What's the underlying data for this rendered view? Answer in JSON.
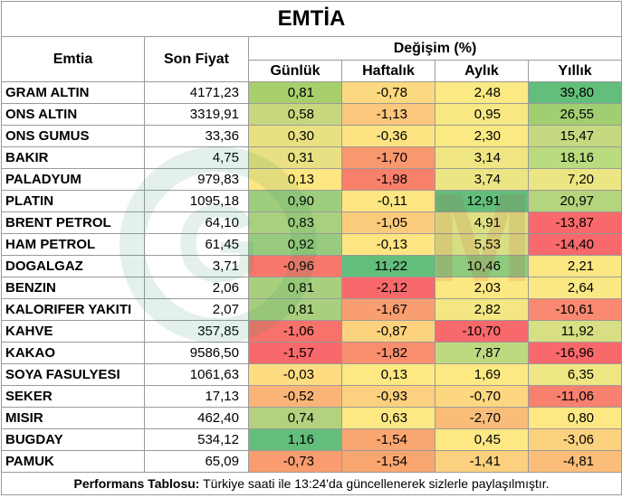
{
  "title": "EMTİA",
  "headers": {
    "commodity": "Emtia",
    "last_price": "Son Fiyat",
    "change_group": "Değişim (%)",
    "daily": "Günlük",
    "weekly": "Haftalık",
    "monthly": "Aylık",
    "yearly": "Yıllık"
  },
  "rows": [
    {
      "name": "GRAM ALTIN",
      "price": "4171,23",
      "daily": "0,81",
      "weekly": "-0,78",
      "monthly": "2,48",
      "yearly": "39,80",
      "colors": [
        "#a8cf6c",
        "#fbd981",
        "#fbe984",
        "#63be7b"
      ]
    },
    {
      "name": "ONS ALTIN",
      "price": "3319,91",
      "daily": "0,58",
      "weekly": "-1,13",
      "monthly": "0,95",
      "yearly": "26,55",
      "colors": [
        "#c7d77e",
        "#fbc77c",
        "#f7e884",
        "#a2ce72"
      ]
    },
    {
      "name": "ONS GUMUS",
      "price": "33,36",
      "daily": "0,30",
      "weekly": "-0,36",
      "monthly": "2,30",
      "yearly": "15,47",
      "colors": [
        "#e9e082",
        "#fde382",
        "#fbe983",
        "#c6d880"
      ]
    },
    {
      "name": "BAKIR",
      "price": "4,75",
      "daily": "0,31",
      "weekly": "-1,70",
      "monthly": "3,14",
      "yearly": "18,16",
      "colors": [
        "#e8e082",
        "#f8986e",
        "#efe583",
        "#badb7e"
      ]
    },
    {
      "name": "PALADYUM",
      "price": "979,83",
      "daily": "0,13",
      "weekly": "-1,98",
      "monthly": "3,74",
      "yearly": "7,20",
      "colors": [
        "#fee782",
        "#f8806b",
        "#ece583",
        "#ebe583"
      ]
    },
    {
      "name": "PLATIN",
      "price": "1095,18",
      "daily": "0,90",
      "weekly": "-0,11",
      "monthly": "12,91",
      "yearly": "20,97",
      "colors": [
        "#9fcd7e",
        "#fee683",
        "#63be7b",
        "#b4d47d"
      ]
    },
    {
      "name": "BRENT PETROL",
      "price": "64,10",
      "daily": "0,83",
      "weekly": "-1,05",
      "monthly": "4,91",
      "yearly": "-13,87",
      "colors": [
        "#a8d07e",
        "#fbcb7c",
        "#dde183",
        "#f8696b"
      ]
    },
    {
      "name": "HAM PETROL",
      "price": "61,45",
      "daily": "0,92",
      "weekly": "-0,13",
      "monthly": "5,53",
      "yearly": "-14,40",
      "colors": [
        "#99cb7e",
        "#fee582",
        "#d7df83",
        "#f8696b"
      ]
    },
    {
      "name": "DOGALGAZ",
      "price": "3,71",
      "daily": "-0,96",
      "weekly": "11,22",
      "monthly": "10,46",
      "yearly": "2,21",
      "colors": [
        "#f8776d",
        "#63be7b",
        "#8ecb7e",
        "#fce883"
      ]
    },
    {
      "name": "BENZIN",
      "price": "2,06",
      "daily": "0,81",
      "weekly": "-2,12",
      "monthly": "2,03",
      "yearly": "2,64",
      "colors": [
        "#a8cf7e",
        "#f8696b",
        "#fbe883",
        "#f9e883"
      ]
    },
    {
      "name": "KALORIFER YAKITI",
      "price": "2,07",
      "daily": "0,81",
      "weekly": "-1,67",
      "monthly": "2,82",
      "yearly": "-10,61",
      "colors": [
        "#a8cf7e",
        "#f99e70",
        "#f3e683",
        "#f98970"
      ]
    },
    {
      "name": "KAHVE",
      "price": "357,85",
      "daily": "-1,06",
      "weekly": "-0,87",
      "monthly": "-10,70",
      "yearly": "11,92",
      "colors": [
        "#f8726c",
        "#fcd27e",
        "#f8696b",
        "#d7de83"
      ]
    },
    {
      "name": "KAKAO",
      "price": "9586,50",
      "daily": "-1,57",
      "weekly": "-1,82",
      "monthly": "7,87",
      "yearly": "-16,96",
      "colors": [
        "#f8696b",
        "#f98e6e",
        "#bfd981",
        "#f8696b"
      ]
    },
    {
      "name": "SOYA FASULYESI",
      "price": "1061,63",
      "daily": "-0,03",
      "weekly": "0,13",
      "monthly": "1,69",
      "yearly": "6,35",
      "colors": [
        "#fedc81",
        "#fee883",
        "#fde983",
        "#eee583"
      ]
    },
    {
      "name": "SEKER",
      "price": "17,13",
      "daily": "-0,52",
      "weekly": "-0,93",
      "monthly": "-0,70",
      "yearly": "-11,06",
      "colors": [
        "#fbb477",
        "#fcd07e",
        "#fdd680",
        "#f8806e"
      ]
    },
    {
      "name": "MISIR",
      "price": "462,40",
      "daily": "0,74",
      "weekly": "0,63",
      "monthly": "-2,70",
      "yearly": "0,80",
      "colors": [
        "#b3d17e",
        "#fee883",
        "#f9bd79",
        "#fee883"
      ]
    },
    {
      "name": "BUGDAY",
      "price": "534,12",
      "daily": "1,16",
      "weekly": "-1,54",
      "monthly": "0,45",
      "yearly": "-3,06",
      "colors": [
        "#63be7b",
        "#f9a671",
        "#fde883",
        "#fcd27f"
      ]
    },
    {
      "name": "PAMUK",
      "price": "65,09",
      "daily": "-0,73",
      "weekly": "-1,54",
      "monthly": "-1,41",
      "yearly": "-4,81",
      "colors": [
        "#f99d70",
        "#f9a671",
        "#fbd07e",
        "#fbbd79"
      ]
    }
  ],
  "footer": {
    "label": "Performans Tablosu:",
    "text": " Türkiye saati ile 13:24'da güncellenerek sizlerle paylaşılmıştır."
  },
  "watermark_letters": [
    "G",
    "M"
  ]
}
